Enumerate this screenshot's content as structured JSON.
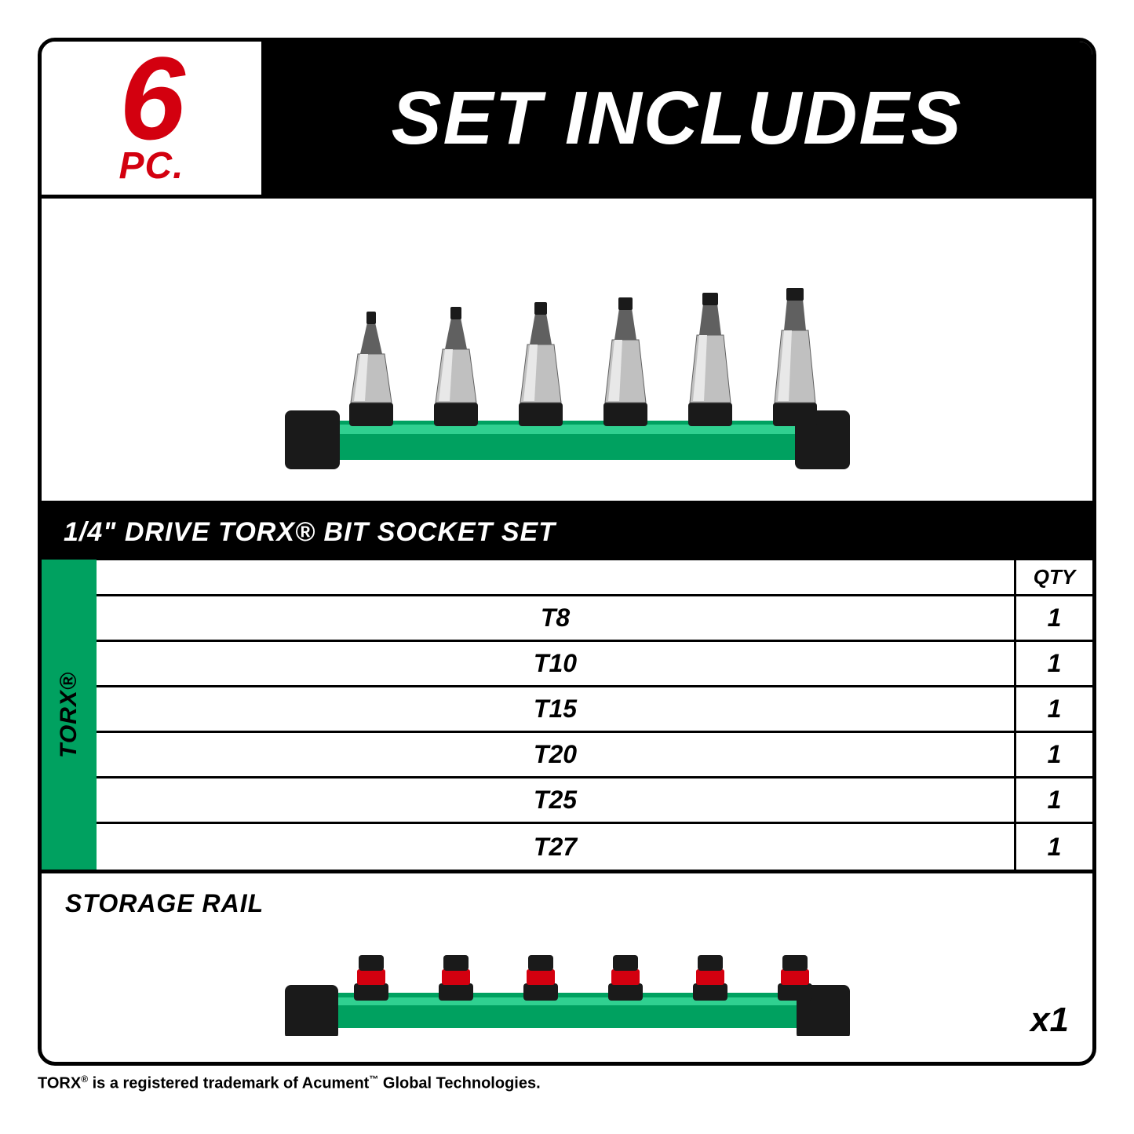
{
  "header": {
    "pc_number": "6",
    "pc_label": "PC.",
    "pc_color": "#d3000f",
    "title": "SET INCLUDES",
    "title_bg": "#000000",
    "title_color": "#ffffff"
  },
  "product_image": {
    "bit_count": 6,
    "bit_color_metal": "#c0c0c0",
    "bit_color_shadow": "#606060",
    "bit_color_tip": "#1a1a1a",
    "rail_body_color": "#00a160",
    "rail_highlight_color": "#30d090",
    "rail_cap_color": "#1a1a1a",
    "rail_width": 720,
    "rail_height": 50,
    "bit_heights": [
      120,
      126,
      132,
      138,
      144,
      150
    ],
    "bit_tip_widths": [
      10,
      12,
      14,
      16,
      18,
      20
    ]
  },
  "table": {
    "side_label": "TORX®",
    "side_bg": "#00a160",
    "header_text": "1/4\" DRIVE TORX® BIT SOCKET SET",
    "header_bg": "#000000",
    "header_color": "#ffffff",
    "qty_label": "QTY",
    "rows": [
      {
        "size": "T8",
        "qty": "1"
      },
      {
        "size": "T10",
        "qty": "1"
      },
      {
        "size": "T15",
        "qty": "1"
      },
      {
        "size": "T20",
        "qty": "1"
      },
      {
        "size": "T25",
        "qty": "1"
      },
      {
        "size": "T27",
        "qty": "1"
      }
    ],
    "row_border_color": "#000000",
    "text_color": "#000000"
  },
  "storage_rail": {
    "title": "STORAGE RAIL",
    "qty_text": "x1",
    "clip_count": 6,
    "rail_body_color": "#00a160",
    "rail_highlight_color": "#30d090",
    "rail_cap_color": "#1a1a1a",
    "clip_base_color": "#1a1a1a",
    "clip_ring_color": "#d3000f",
    "clip_top_color": "#1a1a1a",
    "rail_width": 720,
    "rail_height": 45
  },
  "footnote": {
    "text_parts": [
      "TORX",
      "®",
      " is a registered trademark of Acument",
      "™",
      " Global Technologies."
    ]
  },
  "frame": {
    "border_color": "#000000",
    "border_width": 5,
    "border_radius": 22,
    "background": "#ffffff"
  }
}
